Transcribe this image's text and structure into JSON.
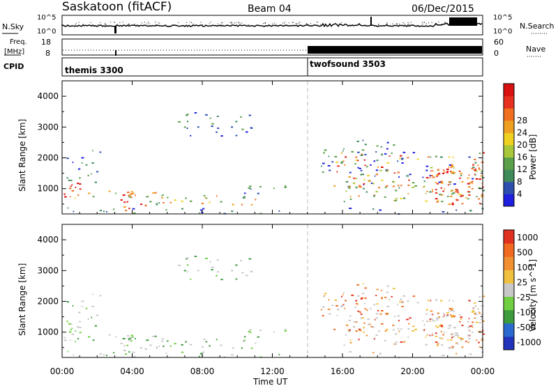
{
  "header": {
    "radar": "Saskatoon (fitACF)",
    "beam": "Beam 04",
    "date": "06/Dec/2015"
  },
  "noise_panel": {
    "left_label": "N.Sky",
    "right_label": "N.Search",
    "left_ticks": [
      "10^5",
      "10^0"
    ],
    "right_ticks": [
      "10^5",
      "10^0"
    ]
  },
  "freq_panel": {
    "left_label_1": "Freq.",
    "left_label_2": "[MHz]",
    "right_label": "Nave",
    "left_ticks": [
      "18",
      "8"
    ],
    "right_ticks": [
      "60",
      "0"
    ]
  },
  "cpid": {
    "label": "CPID",
    "segments": [
      {
        "name": "themis 3300",
        "start": 0
      },
      {
        "name": "twofsound 3503",
        "start": 14
      }
    ]
  },
  "chart_data": [
    {
      "type": "heatmap",
      "name": "power",
      "ylabel": "Slant Range [km]",
      "y_ticks": [
        "1000",
        "2000",
        "3000",
        "4000"
      ],
      "ylim": [
        180,
        4500
      ],
      "colorbar_label": "Power [dB]",
      "colorbar_ticks": [
        "4",
        "8",
        "12",
        "16",
        "20",
        "24",
        "28"
      ],
      "colorbar_colors": [
        "#1f1fe0",
        "#2e4fb0",
        "#3f8a5a",
        "#5aa04a",
        "#a8c83a",
        "#f0d020",
        "#f0a020",
        "#f07020",
        "#e83020",
        "#d81010"
      ]
    },
    {
      "type": "heatmap",
      "name": "velocity",
      "ylabel": "Slant Range [km]",
      "y_ticks": [
        "1000",
        "2000",
        "3000",
        "4000"
      ],
      "ylim": [
        180,
        4500
      ],
      "colorbar_label": "Velocity [m s^-1]",
      "colorbar_ticks": [
        "1000",
        "500",
        "100",
        "25",
        "-25",
        "-100",
        "-500",
        "-1000"
      ],
      "colorbar_colors": [
        "#2233bb",
        "#2a6ad0",
        "#3d9a3d",
        "#6fcf40",
        "#c8c8c8",
        "#f0c040",
        "#f09030",
        "#f06a20",
        "#e03020"
      ]
    }
  ],
  "x_axis": {
    "label": "Time UT",
    "ticks": [
      "00:00",
      "04:00",
      "08:00",
      "12:00",
      "16:00",
      "20:00",
      "00:00"
    ]
  }
}
